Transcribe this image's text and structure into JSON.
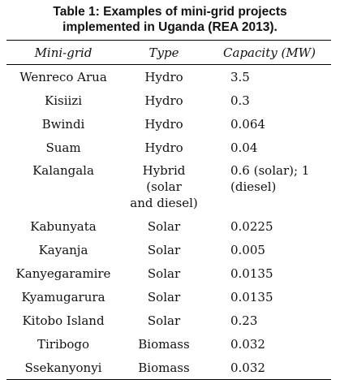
{
  "caption": {
    "line1": "Table 1: Examples of mini-grid projects",
    "line2": "implemented in Uganda (REA 2013)."
  },
  "table": {
    "headers": [
      "Mini-grid",
      "Type",
      "Capacity (MW)"
    ],
    "rows": [
      {
        "mini_grid": "Wenreco Arua",
        "type": "Hydro",
        "capacity": "3.5"
      },
      {
        "mini_grid": "Kisiizi",
        "type": "Hydro",
        "capacity": "0.3"
      },
      {
        "mini_grid": "Bwindi",
        "type": "Hydro",
        "capacity": "0.064"
      },
      {
        "mini_grid": "Suam",
        "type": "Hydro",
        "capacity": "0.04"
      },
      {
        "mini_grid": "Kalangala",
        "type_line1": "Hybrid (solar",
        "type_line2": "and diesel)",
        "capacity_line1": "0.6 (solar); 1",
        "capacity_line2": "(diesel)"
      },
      {
        "mini_grid": "Kabunyata",
        "type": "Solar",
        "capacity": "0.0225"
      },
      {
        "mini_grid": "Kayanja",
        "type": "Solar",
        "capacity": "0.005"
      },
      {
        "mini_grid": "Kanyegaramire",
        "type": "Solar",
        "capacity": "0.0135"
      },
      {
        "mini_grid": "Kyamugarura",
        "type": "Solar",
        "capacity": "0.0135"
      },
      {
        "mini_grid": "Kitobo Island",
        "type": "Solar",
        "capacity": "0.23"
      },
      {
        "mini_grid": "Tiribogo",
        "type": "Biomass",
        "capacity": "0.032"
      },
      {
        "mini_grid": "Ssekanyonyi",
        "type": "Biomass",
        "capacity": "0.032"
      }
    ]
  }
}
